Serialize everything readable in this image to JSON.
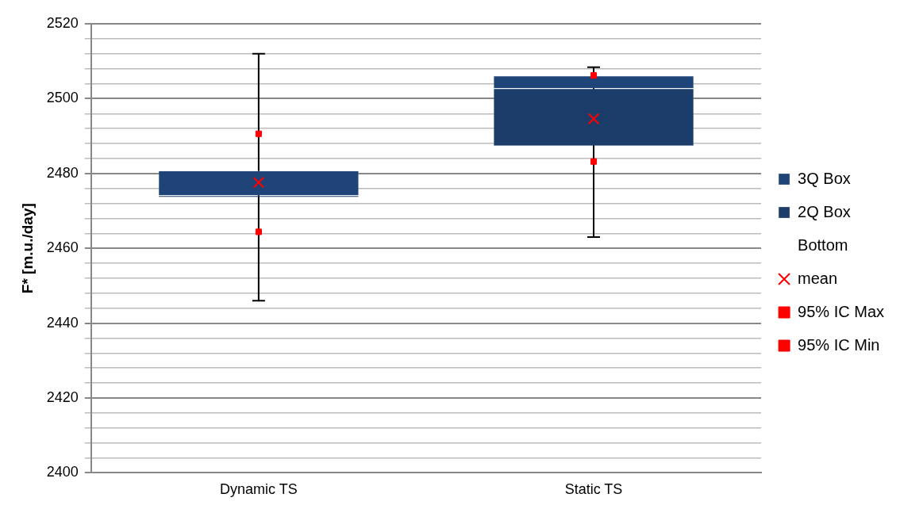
{
  "chart_data": {
    "type": "bar",
    "ylabel": "F* [m.u./day]",
    "categories": [
      "Dynamic TS",
      "Static TS"
    ],
    "ylim": [
      2400,
      2520
    ],
    "yticks": [
      2400,
      {
        "value": 2404,
        "label": null
      },
      {
        "value": 2408,
        "label": null
      },
      {
        "value": 2412,
        "label": null
      },
      {
        "value": 2416,
        "label": null
      },
      2420,
      {
        "value": 2424,
        "label": null
      },
      {
        "value": 2428,
        "label": null
      },
      {
        "value": 2432,
        "label": null
      },
      {
        "value": 2436,
        "label": null
      },
      2440,
      {
        "value": 2444,
        "label": null
      },
      {
        "value": 2448,
        "label": null
      },
      {
        "value": 2452,
        "label": null
      },
      {
        "value": 2456,
        "label": null
      },
      2460,
      {
        "value": 2464,
        "label": null
      },
      {
        "value": 2468,
        "label": null
      },
      {
        "value": 2472,
        "label": null
      },
      {
        "value": 2476,
        "label": null
      },
      2480,
      {
        "value": 2484,
        "label": null
      },
      {
        "value": 2488,
        "label": null
      },
      {
        "value": 2492,
        "label": null
      },
      {
        "value": 2496,
        "label": null
      },
      2500,
      {
        "value": 2504,
        "label": null
      },
      {
        "value": 2508,
        "label": null
      },
      {
        "value": 2512,
        "label": null
      },
      {
        "value": 2516,
        "label": null
      },
      2520
    ],
    "grid": "y",
    "legend": "right",
    "series": [
      {
        "name": "Bottom",
        "values": [
          null,
          null
        ]
      },
      {
        "name": "2Q Box",
        "color": "#1c3c69",
        "base": [
          2473.7,
          2487.4
        ],
        "values": [
          0.5,
          15.4
        ]
      },
      {
        "name": "3Q Box",
        "color": "#1f4477",
        "base": [
          2474.2,
          2502.8
        ],
        "values": [
          6.6,
          3.4
        ],
        "errors": [
          [
            2446,
            2512
          ],
          [
            2463,
            2508.4
          ]
        ]
      },
      {
        "name": "mean",
        "type": "scatter",
        "marker": "cross",
        "color": "#ff0000",
        "x": [
          "Dynamic TS",
          "Static TS"
        ],
        "values": [
          2477.6,
          2494.6
        ]
      },
      {
        "name": "95% IC Max",
        "type": "scatter",
        "marker": "square",
        "color": "#ff0000",
        "x": [
          "Dynamic TS",
          "Static TS"
        ],
        "values": [
          2490.6,
          2506.2
        ]
      },
      {
        "name": "95% IC Min",
        "type": "scatter",
        "marker": "square",
        "color": "#ff0000",
        "x": [
          "Dynamic TS",
          "Static TS"
        ],
        "values": [
          2464.4,
          2483.2
        ]
      }
    ]
  }
}
